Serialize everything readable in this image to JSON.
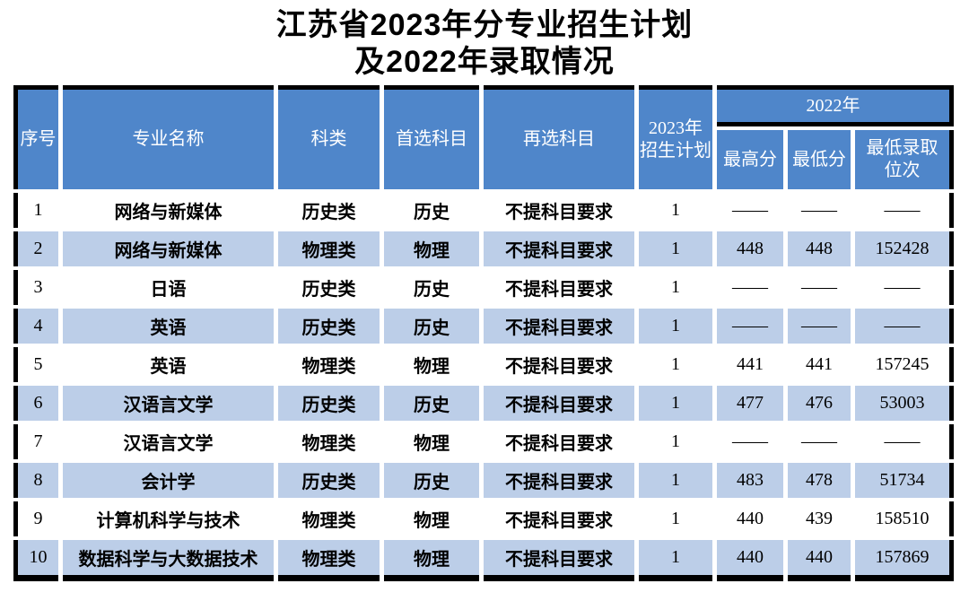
{
  "page": {
    "title_line1": "江苏省2023年分专业招生计划",
    "title_line2": "及2022年录取情况"
  },
  "table": {
    "headers": {
      "no": "序号",
      "major": "专业名称",
      "category": "科类",
      "first_subject": "首选科目",
      "second_subject": "再选科目",
      "plan_2023": "2023年\n招生计划",
      "year_2022": "2022年",
      "max_score": "最高分",
      "min_score": "最低分",
      "min_rank": "最低录取\n位次"
    },
    "column_keys": [
      "no",
      "major",
      "category",
      "first-subject",
      "second-subject",
      "plan-2023",
      "max-score-2022",
      "min-score-2022",
      "min-rank-2022"
    ],
    "rows": [
      [
        "1",
        "网络与新媒体",
        "历史类",
        "历史",
        "不提科目要求",
        "1",
        "——",
        "——",
        "——"
      ],
      [
        "2",
        "网络与新媒体",
        "物理类",
        "物理",
        "不提科目要求",
        "1",
        "448",
        "448",
        "152428"
      ],
      [
        "3",
        "日语",
        "历史类",
        "历史",
        "不提科目要求",
        "1",
        "——",
        "——",
        "——"
      ],
      [
        "4",
        "英语",
        "历史类",
        "历史",
        "不提科目要求",
        "1",
        "——",
        "——",
        "——"
      ],
      [
        "5",
        "英语",
        "物理类",
        "物理",
        "不提科目要求",
        "1",
        "441",
        "441",
        "157245"
      ],
      [
        "6",
        "汉语言文学",
        "历史类",
        "历史",
        "不提科目要求",
        "1",
        "477",
        "476",
        "53003"
      ],
      [
        "7",
        "汉语言文学",
        "物理类",
        "物理",
        "不提科目要求",
        "1",
        "——",
        "——",
        "——"
      ],
      [
        "8",
        "会计学",
        "历史类",
        "历史",
        "不提科目要求",
        "1",
        "483",
        "478",
        "51734"
      ],
      [
        "9",
        "计算机科学与技术",
        "物理类",
        "物理",
        "不提科目要求",
        "1",
        "440",
        "439",
        "158510"
      ],
      [
        "10",
        "数据科学与大数据技术",
        "物理类",
        "物理",
        "不提科目要求",
        "1",
        "440",
        "440",
        "157869"
      ]
    ]
  },
  "colors": {
    "header_bg": "#4F86CA",
    "band_bg": "#BCCEE8",
    "border": "#000000",
    "header_text": "#FFFFFF",
    "body_text": "#000000"
  }
}
